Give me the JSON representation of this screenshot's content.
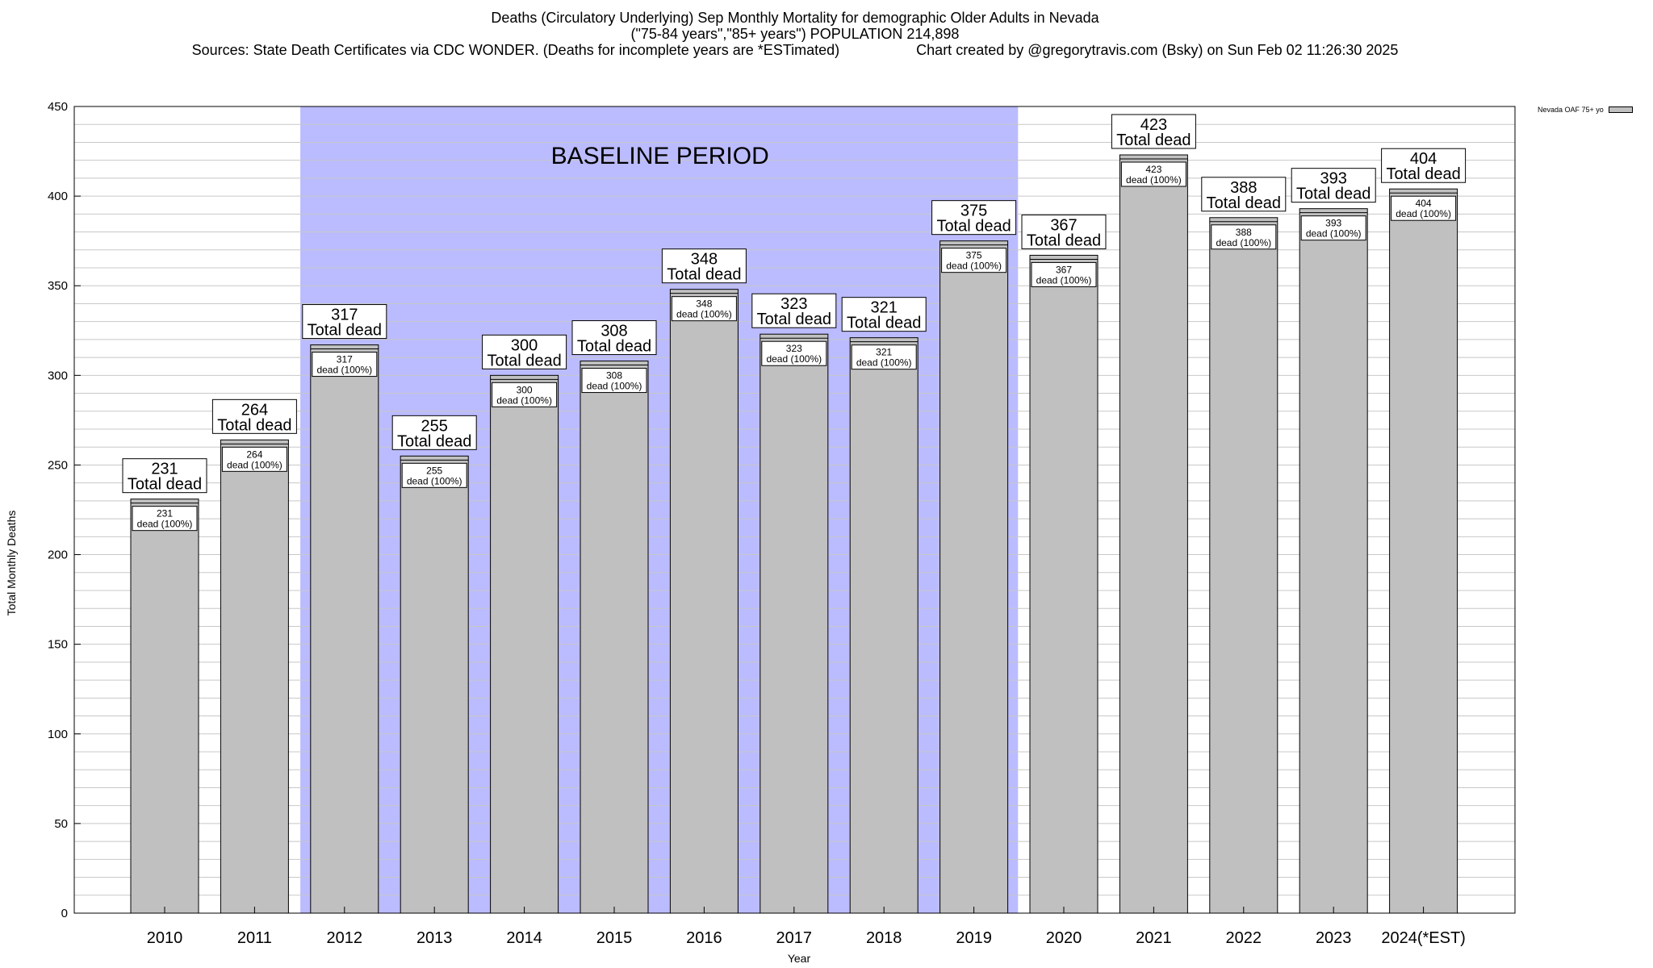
{
  "title": {
    "line1": "Deaths (Circulatory Underlying) Sep Monthly Mortality for demographic Older Adults in Nevada",
    "line2": "(\"75-84 years\",\"85+ years\") POPULATION 214,898",
    "line3_left": "Sources: State Death Certificates via CDC WONDER. (Deaths for incomplete years are *ESTimated)",
    "line3_right": "Chart created by @gregorytravis.com (Bsky) on Sun Feb 02 11:26:30 2025"
  },
  "colors": {
    "bar": "#c0c0c0",
    "baseline": "#bbbbff",
    "grid": "#c8c8c8"
  },
  "chart_data": {
    "type": "bar",
    "xlabel": "Year",
    "ylabel": "Total Monthly Deaths",
    "ylim": [
      0,
      450
    ],
    "ytick_step": 50,
    "grid": true,
    "legend_position": "top-right",
    "categories": [
      "2010",
      "2011",
      "2012",
      "2013",
      "2014",
      "2015",
      "2016",
      "2017",
      "2018",
      "2019",
      "2020",
      "2021",
      "2022",
      "2023",
      "2024(*EST)"
    ],
    "series": [
      {
        "name": "Nevada OAF 75+ yo",
        "values": [
          231,
          264,
          317,
          255,
          300,
          308,
          348,
          323,
          321,
          375,
          367,
          423,
          388,
          393,
          404
        ]
      }
    ],
    "label_suffix": "Total dead",
    "inner_label_suffix": "dead (100%)",
    "annotation": {
      "text": "BASELINE PERIOD",
      "from": "2012",
      "to": "2019"
    }
  }
}
